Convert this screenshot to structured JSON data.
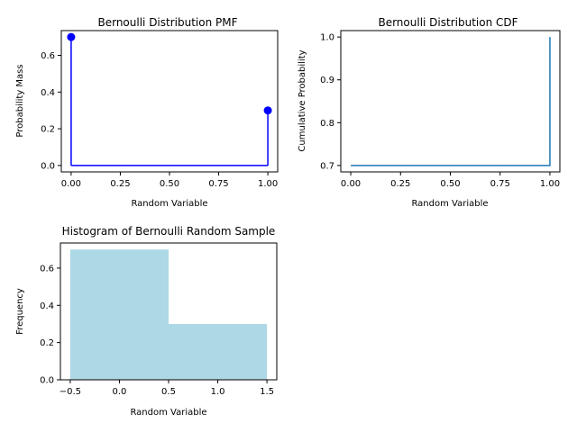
{
  "colors": {
    "pmf": "#0000ff",
    "cdf": "#1f77b4",
    "hist": "#add8e6"
  },
  "chart_data": [
    {
      "type": "line",
      "title": "Bernoulli Distribution PMF",
      "xlabel": "Random Variable",
      "ylabel": "Probability Mass",
      "x": [
        0,
        1
      ],
      "values": [
        0.7,
        0.3
      ],
      "xlim": [
        -0.05,
        1.05
      ],
      "ylim": [
        -0.035,
        0.735
      ],
      "xticks": [
        "0.00",
        "0.25",
        "0.50",
        "0.75",
        "1.00"
      ],
      "yticks": [
        "0.0",
        "0.2",
        "0.4",
        "0.6"
      ],
      "grid": false
    },
    {
      "type": "line",
      "title": "Bernoulli Distribution CDF",
      "xlabel": "Random Variable",
      "ylabel": "Cumulative Probability",
      "x": [
        0,
        1,
        1
      ],
      "values": [
        0.7,
        0.7,
        1.0
      ],
      "xlim": [
        -0.05,
        1.05
      ],
      "ylim": [
        0.685,
        1.015
      ],
      "xticks": [
        "0.00",
        "0.25",
        "0.50",
        "0.75",
        "1.00"
      ],
      "yticks": [
        "0.7",
        "0.8",
        "0.9",
        "1.0"
      ],
      "grid": false
    },
    {
      "type": "bar",
      "title": "Histogram of Bernoulli Random Sample",
      "xlabel": "Random Variable",
      "ylabel": "Frequency",
      "bins": [
        [
          -0.5,
          0.5
        ],
        [
          0.5,
          1.5
        ]
      ],
      "values": [
        0.7,
        0.3
      ],
      "xlim": [
        -0.6,
        1.6
      ],
      "ylim": [
        0,
        0.735
      ],
      "xticks": [
        "−0.5",
        "0.0",
        "0.5",
        "1.0",
        "1.5"
      ],
      "yticks": [
        "0.0",
        "0.2",
        "0.4",
        "0.6"
      ],
      "grid": false
    }
  ]
}
